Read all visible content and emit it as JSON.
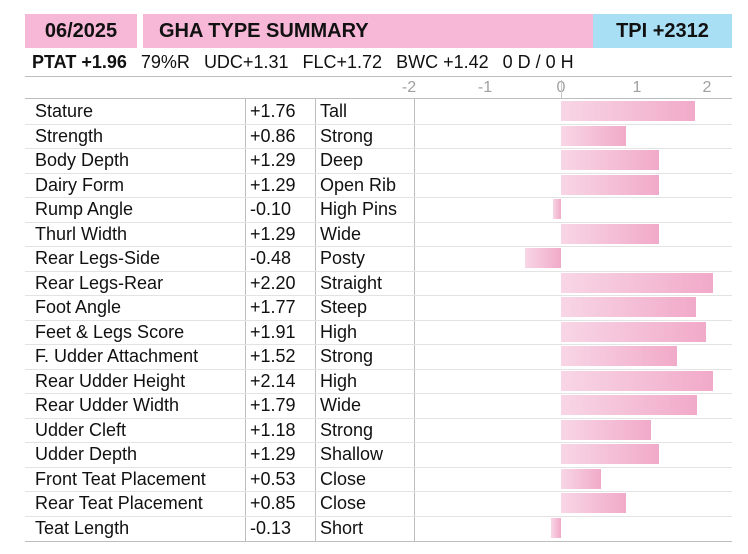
{
  "header": {
    "date": "06/2025",
    "title": "GHA TYPE SUMMARY",
    "tpi": "TPI +2312",
    "header_color": "#f7b7d7",
    "tpi_color": "#a8dff5"
  },
  "stats": {
    "ptat": "PTAT +1.96",
    "reliability": "79%R",
    "udc": "UDC+1.31",
    "flc": "FLC+1.72",
    "bwc": "BWC +1.42",
    "daughters_herds": "0 D /  0 H"
  },
  "chart_data": {
    "type": "bar",
    "orientation": "horizontal",
    "xlim": [
      -2,
      2
    ],
    "xticks": [
      "-2",
      "-1",
      "0",
      "1",
      "2"
    ],
    "bar_color": "#f1aac9",
    "categories": [
      "Stature",
      "Strength",
      "Body Depth",
      "Dairy Form",
      "Rump Angle",
      "Thurl Width",
      "Rear Legs-Side",
      "Rear Legs-Rear",
      "Foot Angle",
      "Feet & Legs Score",
      "F. Udder Attachment",
      "Rear Udder Height",
      "Rear Udder Width",
      "Udder Cleft",
      "Udder Depth",
      "Front Teat Placement",
      "Rear Teat Placement",
      "Teat Length"
    ],
    "values": [
      1.76,
      0.86,
      1.29,
      1.29,
      -0.1,
      1.29,
      -0.48,
      2.2,
      1.77,
      1.91,
      1.52,
      2.14,
      1.79,
      1.18,
      1.29,
      0.53,
      0.85,
      -0.13
    ],
    "value_labels": [
      "+1.76",
      "+0.86",
      "+1.29",
      "+1.29",
      "-0.10",
      "+1.29",
      "-0.48",
      "+2.20",
      "+1.77",
      "+1.91",
      "+1.52",
      "+2.14",
      "+1.79",
      "+1.18",
      "+1.29",
      "+0.53",
      "+0.85",
      "-0.13"
    ],
    "descriptors": [
      "Tall",
      "Strong",
      "Deep",
      "Open Rib",
      "High Pins",
      "Wide",
      "Posty",
      "Straight",
      "Steep",
      "High",
      "Strong",
      "High",
      "Wide",
      "Strong",
      "Shallow",
      "Close",
      "Close",
      "Short"
    ]
  }
}
